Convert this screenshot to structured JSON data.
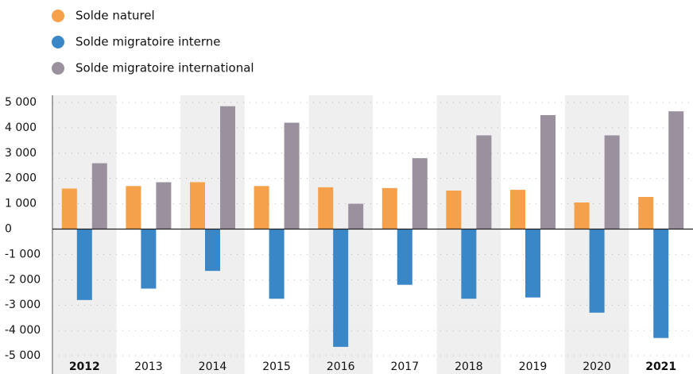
{
  "chart_data": {
    "type": "bar",
    "categories": [
      "2012",
      "2013",
      "2014",
      "2015",
      "2016",
      "2017",
      "2018",
      "2019",
      "2020",
      "2021"
    ],
    "bold_categories": [
      0,
      9
    ],
    "series": [
      {
        "name": "Solde naturel",
        "color": "#f5a04a",
        "values": [
          1600,
          1700,
          1850,
          1700,
          1650,
          1620,
          1520,
          1550,
          1050,
          1270
        ]
      },
      {
        "name": "Solde migratoire interne",
        "color": "#3a87c8",
        "values": [
          -2800,
          -2350,
          -1650,
          -2750,
          -4650,
          -2200,
          -2750,
          -2700,
          -3300,
          -4300
        ]
      },
      {
        "name": "Solde migratoire international",
        "color": "#9b919e",
        "values": [
          2600,
          1850,
          4850,
          4200,
          1000,
          2800,
          3700,
          4500,
          3700,
          4650
        ]
      }
    ],
    "ylim": [
      -5000,
      5000
    ],
    "yticks": [
      {
        "value": -5000,
        "label": "-5 000"
      },
      {
        "value": -4000,
        "label": "-4 000"
      },
      {
        "value": -3000,
        "label": "-3 000"
      },
      {
        "value": -2000,
        "label": "-2 000"
      },
      {
        "value": -1000,
        "label": "-1 000"
      },
      0,
      {
        "value": 1000,
        "label": "1 000"
      },
      {
        "value": 2000,
        "label": "2 000"
      },
      {
        "value": 3000,
        "label": "3 000"
      },
      {
        "value": 4000,
        "label": "4 000"
      },
      {
        "value": 5000,
        "label": "5 000"
      }
    ],
    "grid": true
  }
}
